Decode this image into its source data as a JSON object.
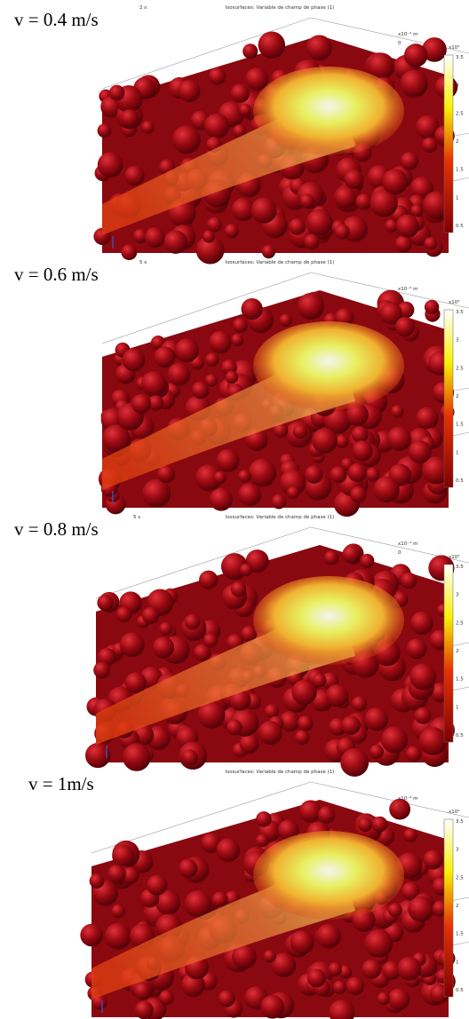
{
  "panel_title": "Isosurfaces: Variable de champ de phase (1)",
  "scale_unit": "x10⁻⁴ m",
  "scale_zero": "0",
  "colorbar": {
    "unit": "x10³",
    "ticks": [
      "3.5",
      "3",
      "2.5",
      "2",
      "1.5",
      "1",
      "0.5"
    ]
  },
  "panels": [
    {
      "label": "v = 0.4 m/s",
      "time": "2 s"
    },
    {
      "label": "v = 0.6 m/s",
      "time": "5 s"
    },
    {
      "label": "v = 0.8 m/s",
      "time": "5 s"
    },
    {
      "label": "v = 1m/s"
    }
  ]
}
